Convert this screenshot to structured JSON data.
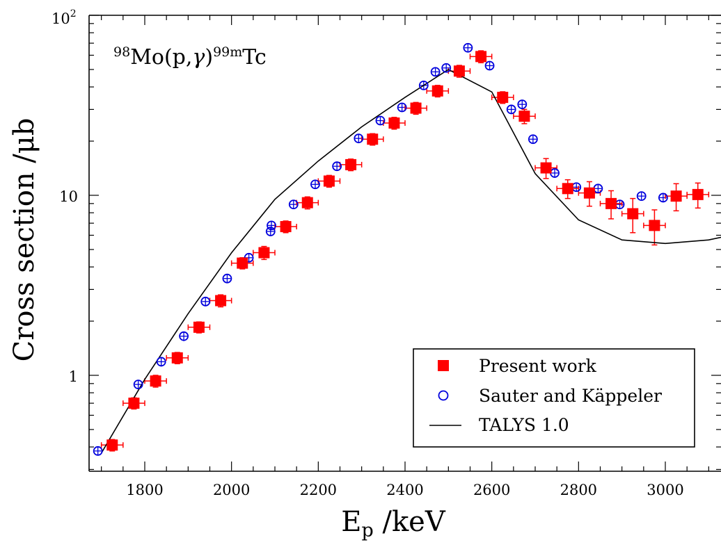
{
  "chart_data": {
    "type": "scatter",
    "annotation": {
      "isotope_a": "98",
      "element_a": "Mo(p,",
      "gamma": "γ",
      "close": ")",
      "isotope_b": "99m",
      "element_b": "Tc"
    },
    "xlabel": {
      "main": "E",
      "sub": "p",
      "unit": " /keV"
    },
    "ylabel": "Cross section /μb",
    "xlim": [
      1660,
      3150
    ],
    "ylim": [
      0.37,
      100
    ],
    "yscale": "log",
    "x_ticks": [
      "1800",
      "2000",
      "2200",
      "2400",
      "2600",
      "2800",
      "3000"
    ],
    "y_tick_labels": {
      "base": "10",
      "exp": "2",
      "ten": "10",
      "one": "1"
    },
    "legend": {
      "position": "bottom-right",
      "entries": [
        "Present work",
        "Sauter and Käppeler",
        "TALYS 1.0"
      ]
    },
    "colors": {
      "present": "#ff0000",
      "sauter": "#0000dd",
      "talys": "#000000"
    },
    "series": [
      {
        "name": "Present work",
        "marker": "filled-square",
        "x_err": 25,
        "points": [
          [
            1725,
            0.41,
            0.03
          ],
          [
            1775,
            0.7,
            0.05
          ],
          [
            1825,
            0.93,
            0.07
          ],
          [
            1875,
            1.25,
            0.09
          ],
          [
            1925,
            1.85,
            0.13
          ],
          [
            1975,
            2.6,
            0.2
          ],
          [
            2025,
            4.2,
            0.3
          ],
          [
            2075,
            4.8,
            0.4
          ],
          [
            2125,
            6.7,
            0.5
          ],
          [
            2175,
            9.1,
            0.7
          ],
          [
            2225,
            12.0,
            0.9
          ],
          [
            2275,
            14.8,
            1.1
          ],
          [
            2325,
            20.5,
            1.5
          ],
          [
            2375,
            25.2,
            1.9
          ],
          [
            2425,
            30.5,
            2.3
          ],
          [
            2475,
            38.0,
            2.8
          ],
          [
            2525,
            49.0,
            3.7
          ],
          [
            2575,
            59.0,
            4.5
          ],
          [
            2625,
            35.0,
            2.6
          ],
          [
            2675,
            27.5,
            2.5
          ],
          [
            2725,
            14.2,
            1.8
          ],
          [
            2775,
            10.9,
            1.3
          ],
          [
            2825,
            10.3,
            1.6
          ],
          [
            2875,
            9.0,
            1.6
          ],
          [
            2925,
            7.9,
            1.7
          ],
          [
            2975,
            6.8,
            1.5
          ],
          [
            3025,
            9.9,
            1.7
          ],
          [
            3075,
            10.1,
            1.6
          ]
        ]
      },
      {
        "name": "Sauter and Käppeler",
        "marker": "open-circle",
        "x_err": 8,
        "points": [
          [
            1692,
            0.38,
            0.02
          ],
          [
            1785,
            0.89,
            0.05
          ],
          [
            1838,
            1.19,
            0.07
          ],
          [
            1890,
            1.65,
            0.1
          ],
          [
            1940,
            2.57,
            0.15
          ],
          [
            1990,
            3.45,
            0.2
          ],
          [
            2040,
            4.5,
            0.25
          ],
          [
            2090,
            6.3,
            0.35
          ],
          [
            2092,
            6.8,
            0.35
          ],
          [
            2143,
            8.9,
            0.45
          ],
          [
            2193,
            11.5,
            0.55
          ],
          [
            2243,
            14.5,
            0.7
          ],
          [
            2293,
            20.7,
            1.0
          ],
          [
            2343,
            26.0,
            1.2
          ],
          [
            2393,
            30.8,
            1.5
          ],
          [
            2443,
            40.8,
            2.0
          ],
          [
            2470,
            48.5,
            2.3
          ],
          [
            2495,
            51.0,
            2.4
          ],
          [
            2545,
            66.0,
            3.2
          ],
          [
            2595,
            52.5,
            2.5
          ],
          [
            2645,
            30.0,
            1.5
          ],
          [
            2670,
            32.0,
            1.5
          ],
          [
            2695,
            20.5,
            1.0
          ],
          [
            2745,
            13.3,
            0.6
          ],
          [
            2795,
            11.1,
            0.5
          ],
          [
            2845,
            10.9,
            0.5
          ],
          [
            2895,
            8.9,
            0.4
          ],
          [
            2945,
            9.9,
            0.45
          ],
          [
            2995,
            9.7,
            0.45
          ]
        ]
      },
      {
        "name": "TALYS 1.0",
        "marker": "line",
        "points": [
          [
            1700,
            0.37
          ],
          [
            1800,
            0.95
          ],
          [
            1900,
            2.2
          ],
          [
            2000,
            4.8
          ],
          [
            2100,
            9.5
          ],
          [
            2200,
            15.5
          ],
          [
            2300,
            24.0
          ],
          [
            2400,
            35.0
          ],
          [
            2500,
            50.0
          ],
          [
            2600,
            37.5
          ],
          [
            2700,
            13.2
          ],
          [
            2800,
            7.3
          ],
          [
            2900,
            5.65
          ],
          [
            3000,
            5.4
          ],
          [
            3100,
            5.65
          ],
          [
            3150,
            6.0
          ]
        ]
      }
    ]
  }
}
